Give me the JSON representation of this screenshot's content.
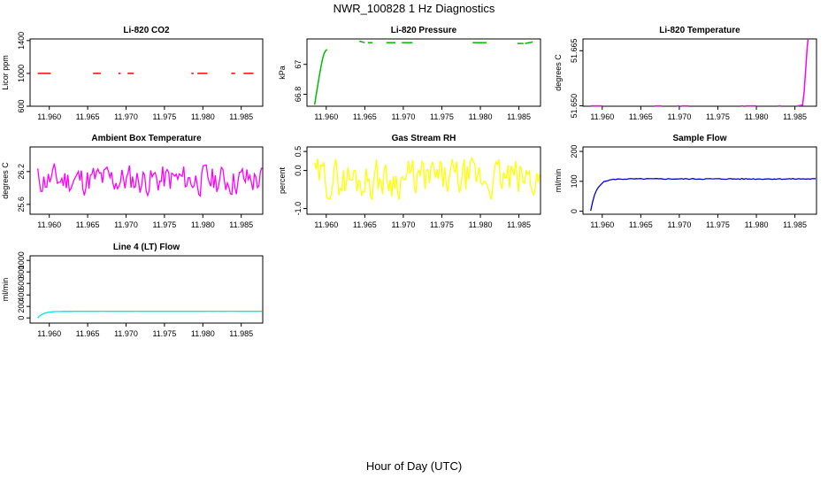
{
  "figure": {
    "title": "NWR_100828  1 Hz Diagnostics",
    "xlabel": "Hour of Day (UTC)"
  },
  "chart_data": [
    {
      "type": "line",
      "title": "Li-820 CO2",
      "ylabel": "Licor ppm",
      "xlim": [
        11.9575,
        11.9878
      ],
      "ylim": [
        600,
        1420
      ],
      "yticks": [
        600,
        1000,
        1400
      ],
      "xticks": [
        "11.960",
        "11.965",
        "11.970",
        "11.975",
        "11.980",
        "11.985"
      ],
      "color": "#ff0000",
      "style": "dashes",
      "segments": [
        {
          "x": [
            11.9585,
            11.9602
          ],
          "y": [
            1000,
            1000
          ]
        },
        {
          "x": [
            11.9657,
            11.9667
          ],
          "y": [
            1000,
            1000
          ]
        },
        {
          "x": [
            11.969,
            11.9693
          ],
          "y": [
            1000,
            1000
          ]
        },
        {
          "x": [
            11.9702,
            11.971
          ],
          "y": [
            1000,
            1000
          ]
        },
        {
          "x": [
            11.9785,
            11.9788
          ],
          "y": [
            1000,
            1000
          ]
        },
        {
          "x": [
            11.9793,
            11.9806
          ],
          "y": [
            1000,
            1000
          ]
        },
        {
          "x": [
            11.9837,
            11.9842
          ],
          "y": [
            1000,
            1000
          ]
        },
        {
          "x": [
            11.9853,
            11.9866
          ],
          "y": [
            1000,
            1000
          ]
        }
      ]
    },
    {
      "type": "line",
      "title": "Li-820 Pressure",
      "ylabel": "kPa",
      "xlim": [
        11.9575,
        11.9878
      ],
      "ylim": [
        66.72,
        67.17
      ],
      "yticks": [
        66.8,
        67.0
      ],
      "xticks": [
        "11.960",
        "11.965",
        "11.970",
        "11.975",
        "11.980",
        "11.985"
      ],
      "color": "#00bb00",
      "style": "dashes",
      "segments": [
        {
          "x": [
            11.9585,
            11.9587,
            11.9589,
            11.9591,
            11.9593,
            11.9595,
            11.9597,
            11.9599,
            11.9601
          ],
          "y": [
            66.73,
            66.8,
            66.86,
            66.92,
            66.98,
            67.03,
            67.07,
            67.09,
            67.1
          ]
        },
        {
          "x": [
            11.9643,
            11.965
          ],
          "y": [
            67.155,
            67.145
          ]
        },
        {
          "x": [
            11.9654,
            11.966
          ],
          "y": [
            67.145,
            67.145
          ]
        },
        {
          "x": [
            11.9678,
            11.969
          ],
          "y": [
            67.145,
            67.145
          ]
        },
        {
          "x": [
            11.9698,
            11.9712
          ],
          "y": [
            67.145,
            67.145
          ]
        },
        {
          "x": [
            11.979,
            11.9808
          ],
          "y": [
            67.145,
            67.145
          ]
        },
        {
          "x": [
            11.9848,
            11.9856
          ],
          "y": [
            67.14,
            67.14
          ]
        },
        {
          "x": [
            11.9858,
            11.9868
          ],
          "y": [
            67.14,
            67.15
          ]
        }
      ]
    },
    {
      "type": "line",
      "title": "Li-820 Temperature",
      "ylabel": "degrees C",
      "xlim": [
        11.9575,
        11.9878
      ],
      "ylim": [
        51.6499,
        51.6682
      ],
      "yticks": [
        51.65,
        51.665
      ],
      "ytick_labels": [
        "51.650",
        "51.665"
      ],
      "xticks": [
        "11.960",
        "11.965",
        "11.970",
        "11.975",
        "11.980",
        "11.985"
      ],
      "color": "#ff00ff",
      "style": "dashes",
      "segments": [
        {
          "x": [
            11.9585,
            11.96
          ],
          "y": [
            51.65,
            51.65
          ]
        },
        {
          "x": [
            11.9668,
            11.9677
          ],
          "y": [
            51.65,
            51.65
          ]
        },
        {
          "x": [
            11.9697,
            11.97
          ],
          "y": [
            51.65,
            51.65
          ]
        },
        {
          "x": [
            11.9703,
            11.9712
          ],
          "y": [
            51.65,
            51.65
          ]
        },
        {
          "x": [
            11.978,
            11.9783
          ],
          "y": [
            51.65,
            51.65
          ]
        },
        {
          "x": [
            11.9786,
            11.98
          ],
          "y": [
            51.65,
            51.65
          ]
        },
        {
          "x": [
            11.9828,
            11.9832
          ],
          "y": [
            51.65,
            51.65
          ]
        },
        {
          "x": [
            11.9853,
            11.986,
            11.9862,
            11.9864,
            11.9866,
            11.9867
          ],
          "y": [
            51.65,
            51.6502,
            51.654,
            51.66,
            51.666,
            51.668
          ]
        }
      ]
    },
    {
      "type": "line",
      "title": "Ambient Box Temperature",
      "ylabel": "degrees C",
      "xlim": [
        11.9575,
        11.9878
      ],
      "ylim": [
        25.42,
        26.65
      ],
      "yticks": [
        25.6,
        26.2
      ],
      "xticks": [
        "11.960",
        "11.965",
        "11.970",
        "11.975",
        "11.980",
        "11.985"
      ],
      "color": "#ff00ff",
      "style": "noise",
      "x_range": [
        11.9585,
        11.9877
      ],
      "base": 26.05,
      "amplitude": 0.3,
      "trend": [
        0.0,
        0.0
      ],
      "seed": 11,
      "points": 150
    },
    {
      "type": "line",
      "title": "Gas Stream RH",
      "ylabel": "percent",
      "xlim": [
        11.9575,
        11.9878
      ],
      "ylim": [
        -1.15,
        0.62
      ],
      "yticks": [
        -1.0,
        0.0,
        0.5
      ],
      "ytick_labels": [
        "-1.0",
        "0.0",
        "0.5"
      ],
      "xticks": [
        "11.960",
        "11.965",
        "11.970",
        "11.975",
        "11.980",
        "11.985"
      ],
      "color": "#ffff00",
      "style": "noise",
      "x_range": [
        11.9585,
        11.9877
      ],
      "base": -0.22,
      "amplitude": 0.55,
      "trend": [
        0.0,
        0.0
      ],
      "seed": 29,
      "points": 150
    },
    {
      "type": "line",
      "title": "Sample Flow",
      "ylabel": "ml/min",
      "xlim": [
        11.9575,
        11.9878
      ],
      "ylim": [
        -10,
        215
      ],
      "yticks": [
        0,
        100,
        200
      ],
      "xticks": [
        "11.960",
        "11.965",
        "11.970",
        "11.975",
        "11.980",
        "11.985"
      ],
      "color": "#0000cc",
      "style": "rise",
      "x_range": [
        11.9585,
        11.9877
      ],
      "start": 0,
      "plateau": 108,
      "ripple": 1.5,
      "seed": 5
    },
    {
      "type": "line",
      "title": "Line 4 (LT) Flow",
      "ylabel": "ml/min",
      "xlim": [
        11.9575,
        11.9878
      ],
      "ylim": [
        -90,
        1080
      ],
      "yticks": [
        0,
        200,
        400,
        600,
        800,
        1000
      ],
      "xticks": [
        "11.960",
        "11.965",
        "11.970",
        "11.975",
        "11.980",
        "11.985"
      ],
      "color": "#00e5ee",
      "style": "rise",
      "x_range": [
        11.9585,
        11.9877
      ],
      "start": 0,
      "plateau": 115,
      "ripple": 1.0,
      "seed": 8
    }
  ]
}
